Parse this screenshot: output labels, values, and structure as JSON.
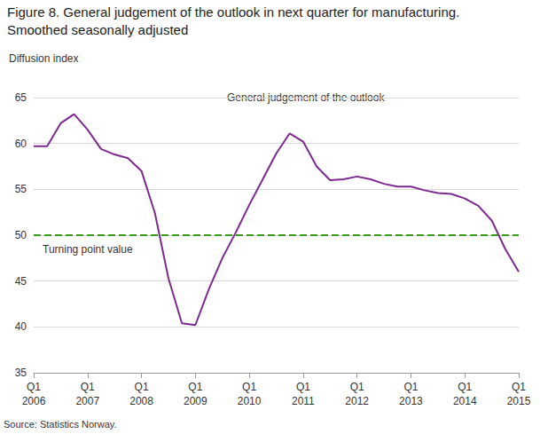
{
  "chart_data": {
    "type": "line",
    "title": "Figure 8. General judgement of the outlook in next quarter for manufacturing.",
    "subtitle": "Smoothed seasonally adjusted",
    "y_label": "Diffusion index",
    "source": "Source: Statistics Norway.",
    "categories": [
      "Q1\n2006",
      null,
      null,
      null,
      "Q1\n2007",
      null,
      null,
      null,
      "Q1\n2008",
      null,
      null,
      null,
      "Q1\n2009",
      null,
      null,
      null,
      "Q1\n2010",
      null,
      null,
      null,
      "Q1\n2011",
      null,
      null,
      null,
      "Q1\n2012",
      null,
      null,
      null,
      "Q1\n2013",
      null,
      null,
      null,
      "Q1\n2014",
      null,
      null,
      null,
      "Q1\n2015"
    ],
    "series": [
      {
        "name": "General judgement of the outlook",
        "color": "#7b2a90",
        "values": [
          59.7,
          59.7,
          62.2,
          63.2,
          61.5,
          59.4,
          58.8,
          58.4,
          57.0,
          52.4,
          45.3,
          40.4,
          40.2,
          44.1,
          47.5,
          50.3,
          53.3,
          56.1,
          58.9,
          61.1,
          60.2,
          57.5,
          56.0,
          56.1,
          56.4,
          56.1,
          55.6,
          55.3,
          55.3,
          54.9,
          54.6,
          54.5,
          54.0,
          53.2,
          51.6,
          48.5,
          46.0
        ]
      }
    ],
    "reference_line": {
      "value": 50,
      "label": "Turning point value",
      "color": "#3a9a1a",
      "line_style": "dashed"
    },
    "ylim": [
      35,
      65
    ],
    "yticks": [
      35,
      40,
      45,
      50,
      55,
      60,
      65
    ],
    "grid": true
  }
}
